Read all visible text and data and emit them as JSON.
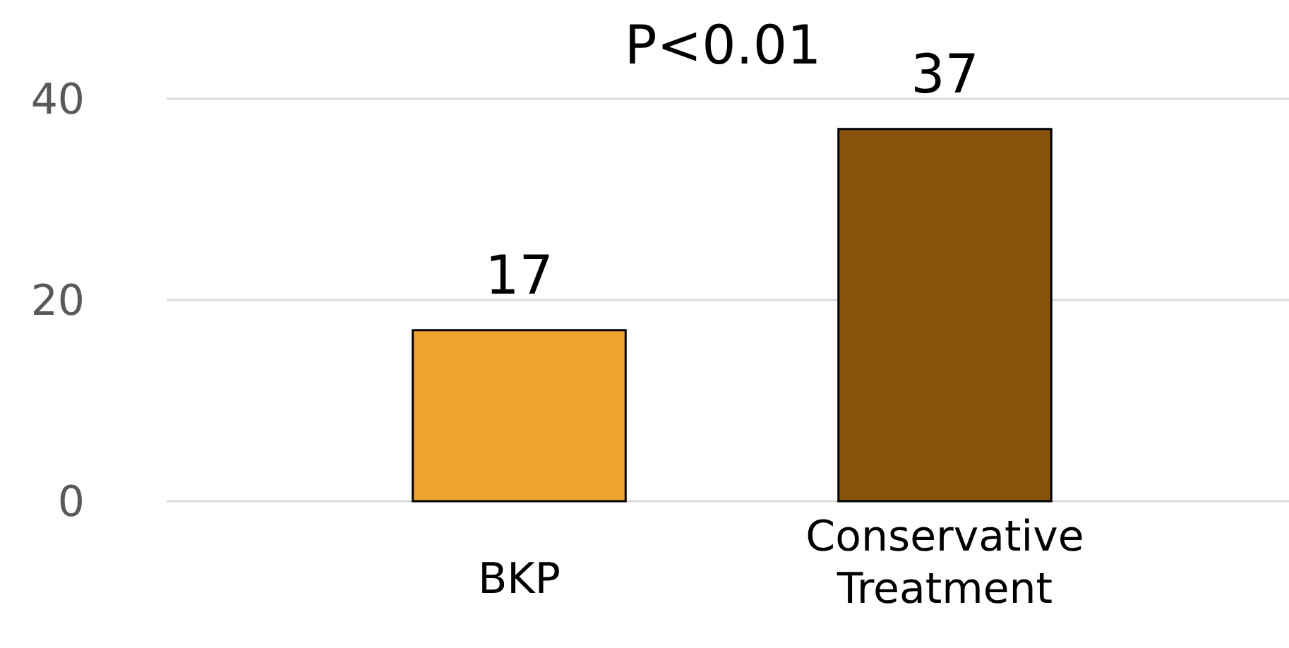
{
  "chart_data": {
    "type": "bar",
    "categories": [
      "BKP",
      "Conservative Treatment"
    ],
    "values": [
      17,
      37
    ],
    "colors": [
      "#f0a430",
      "#85530b"
    ],
    "ylim": [
      0,
      40
    ],
    "yticks": [
      0,
      20,
      40
    ],
    "grid": "y",
    "data_labels": true,
    "annotations": [
      "P<0.01"
    ]
  }
}
